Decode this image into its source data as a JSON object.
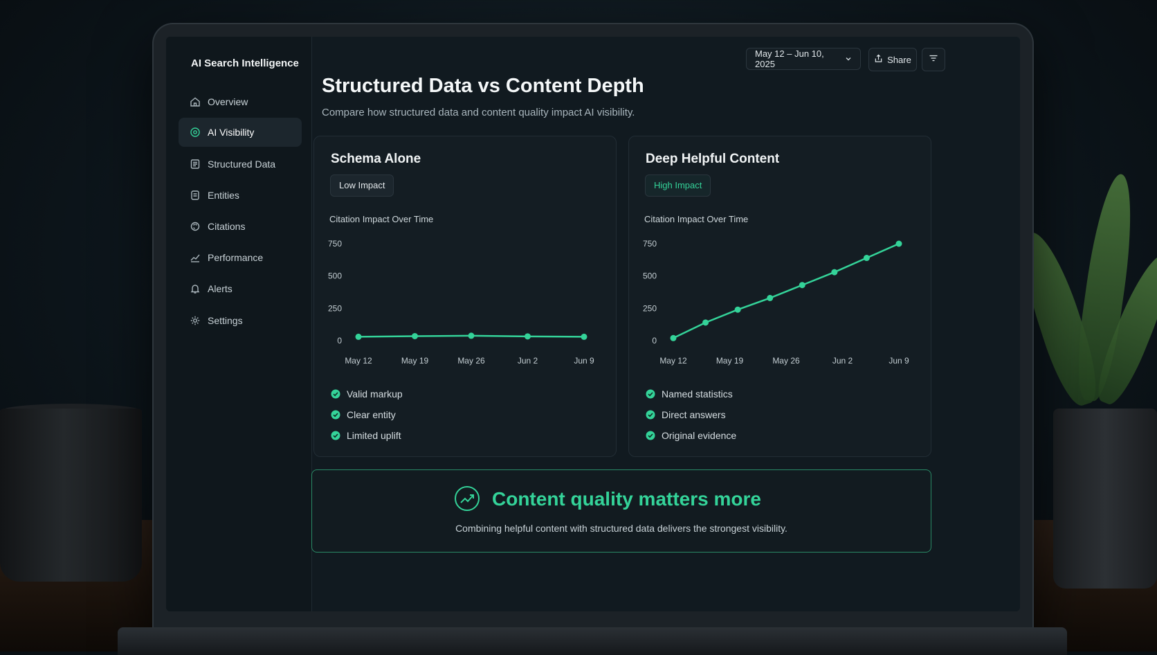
{
  "app": {
    "title": "AI Search Intelligence"
  },
  "sidebar": {
    "items": [
      {
        "label": "Overview",
        "icon": "home-icon",
        "active": false
      },
      {
        "label": "AI Visibility",
        "icon": "target-icon",
        "active": true
      },
      {
        "label": "Structured Data",
        "icon": "table-icon",
        "active": false
      },
      {
        "label": "Entities",
        "icon": "database-icon",
        "active": false
      },
      {
        "label": "Citations",
        "icon": "link-icon",
        "active": false
      },
      {
        "label": "Performance",
        "icon": "trend-icon",
        "active": false
      },
      {
        "label": "Alerts",
        "icon": "bell-icon",
        "active": false
      },
      {
        "label": "Settings",
        "icon": "gear-icon",
        "active": false
      }
    ]
  },
  "header": {
    "date_range": "May 12 – Jun 10, 2025",
    "share_label": "Share",
    "title": "Structured Data vs Content Depth",
    "subtitle": "Compare how structured data and content quality impact AI visibility."
  },
  "colors": {
    "accent": "#34d399",
    "background": "#111a20",
    "card": "#141d23"
  },
  "cards": [
    {
      "title": "Schema Alone",
      "badge": "Low Impact",
      "chart_title": "Citation Impact Over Time",
      "checks": [
        "Valid markup",
        "Clear entity",
        "Limited uplift"
      ]
    },
    {
      "title": "Deep Helpful Content",
      "badge": "High Impact",
      "chart_title": "Citation Impact Over Time",
      "checks": [
        "Named statistics",
        "Direct answers",
        "Original evidence"
      ]
    }
  ],
  "chart_data": [
    {
      "type": "line",
      "title": "Citation Impact Over Time",
      "x_ticks": [
        "May 12",
        "May 19",
        "May 26",
        "Jun 2",
        "Jun 9"
      ],
      "y_ticks": [
        0,
        250,
        500,
        750
      ],
      "ylim": [
        0,
        750
      ],
      "grid": false,
      "series": [
        {
          "color": "#34d399",
          "values": [
            30,
            35,
            38,
            33,
            30
          ]
        }
      ]
    },
    {
      "type": "line",
      "title": "Citation Impact Over Time",
      "x_ticks": [
        "May 12",
        "May 19",
        "May 26",
        "Jun 2",
        "Jun 9"
      ],
      "y_ticks": [
        0,
        250,
        500,
        750
      ],
      "ylim": [
        0,
        750
      ],
      "grid": false,
      "series": [
        {
          "color": "#34d399",
          "values": [
            20,
            140,
            240,
            330,
            430,
            530,
            640,
            750
          ]
        }
      ]
    }
  ],
  "insight": {
    "title": "Content quality matters more",
    "text": "Combining helpful content with structured data delivers the strongest visibility."
  }
}
